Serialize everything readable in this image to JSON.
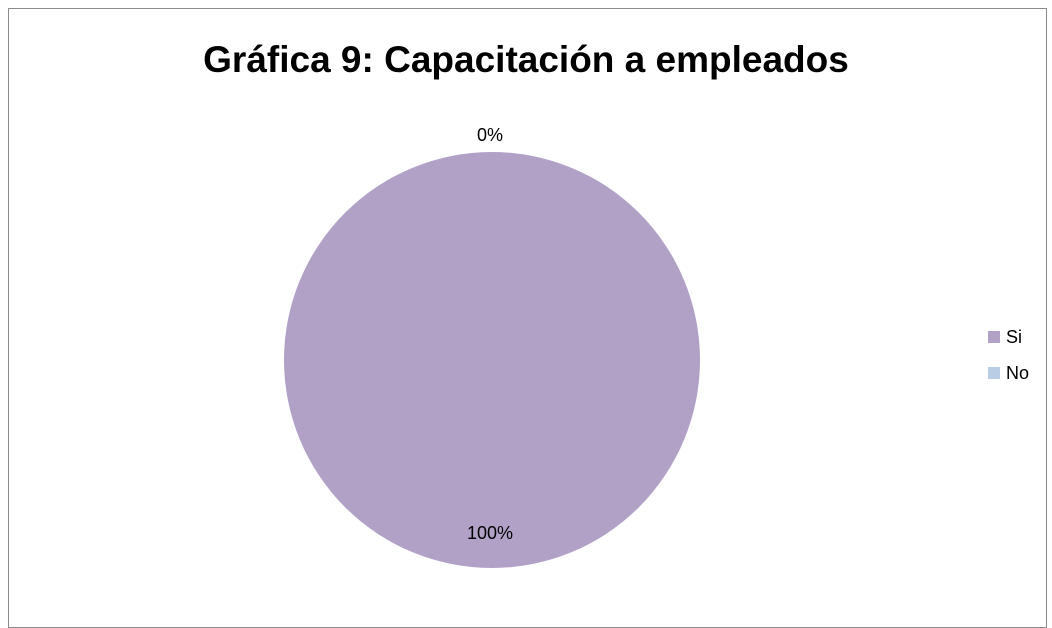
{
  "chart_data": {
    "type": "pie",
    "title": "Gráfica 9: Capacitación a empleados",
    "categories": [
      "Si",
      "No"
    ],
    "values": [
      100,
      0
    ],
    "data_labels": [
      "100%",
      "0%"
    ],
    "colors": [
      "#b2a1c7",
      "#b9cde5"
    ],
    "legend_position": "right"
  }
}
